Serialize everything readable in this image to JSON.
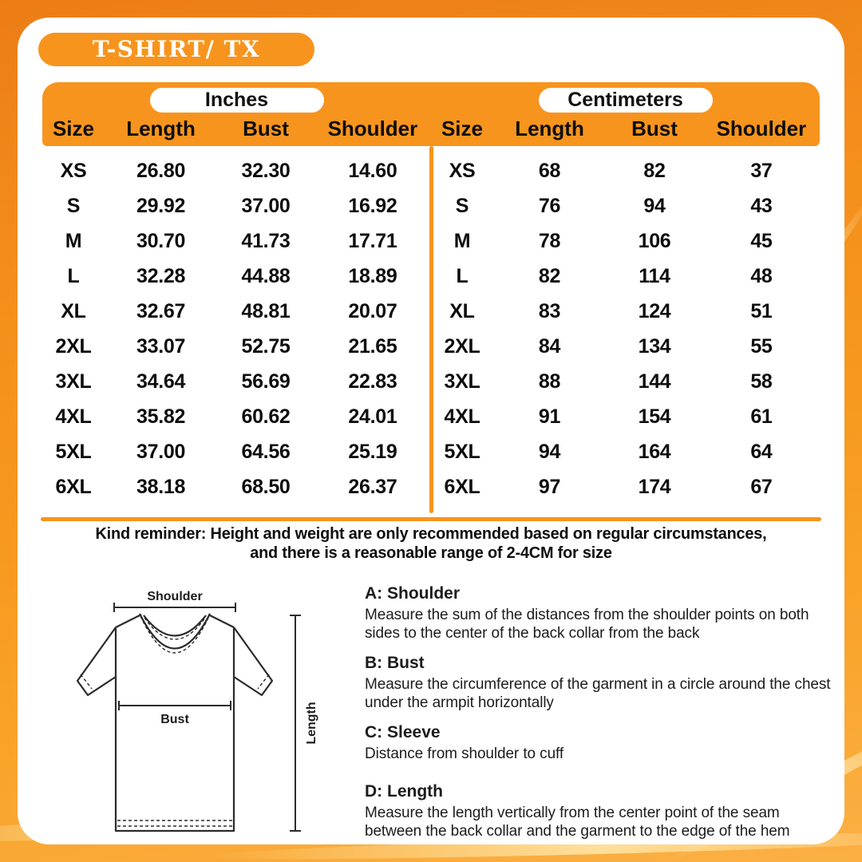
{
  "page": {
    "title": "T-SHIRT/ TX"
  },
  "colors": {
    "accent_orange": "#F7941D",
    "background_top": "#EC7D15",
    "background_bottom": "#FBB045",
    "card_white": "#FFFFFF",
    "text_black": "#0D0D0D"
  },
  "tables": [
    {
      "unit_label": "Inches",
      "columns": [
        "Size",
        "Length",
        "Bust",
        "Shoulder"
      ],
      "rows": [
        [
          "XS",
          "26.80",
          "32.30",
          "14.60"
        ],
        [
          "S",
          "29.92",
          "37.00",
          "16.92"
        ],
        [
          "M",
          "30.70",
          "41.73",
          "17.71"
        ],
        [
          "L",
          "32.28",
          "44.88",
          "18.89"
        ],
        [
          "XL",
          "32.67",
          "48.81",
          "20.07"
        ],
        [
          "2XL",
          "33.07",
          "52.75",
          "21.65"
        ],
        [
          "3XL",
          "34.64",
          "56.69",
          "22.83"
        ],
        [
          "4XL",
          "35.82",
          "60.62",
          "24.01"
        ],
        [
          "5XL",
          "37.00",
          "64.56",
          "25.19"
        ],
        [
          "6XL",
          "38.18",
          "68.50",
          "26.37"
        ]
      ]
    },
    {
      "unit_label": "Centimeters",
      "columns": [
        "Size",
        "Length",
        "Bust",
        "Shoulder"
      ],
      "rows": [
        [
          "XS",
          "68",
          "82",
          "37"
        ],
        [
          "S",
          "76",
          "94",
          "43"
        ],
        [
          "M",
          "78",
          "106",
          "45"
        ],
        [
          "L",
          "82",
          "114",
          "48"
        ],
        [
          "XL",
          "83",
          "124",
          "51"
        ],
        [
          "2XL",
          "84",
          "134",
          "55"
        ],
        [
          "3XL",
          "88",
          "144",
          "58"
        ],
        [
          "4XL",
          "91",
          "154",
          "61"
        ],
        [
          "5XL",
          "94",
          "164",
          "64"
        ],
        [
          "6XL",
          "97",
          "174",
          "67"
        ]
      ]
    }
  ],
  "reminder": {
    "line1": "Kind reminder: Height and weight are only recommended based on regular circumstances,",
    "line2": "and there is a reasonable range of 2-4CM for size"
  },
  "diagram": {
    "shoulder_label": "Shoulder",
    "bust_label": "Bust",
    "length_label": "Length"
  },
  "instructions": [
    {
      "heading": "A: Shoulder",
      "body": "Measure the sum of the distances from the shoulder points on both sides to the center of the back collar from the back"
    },
    {
      "heading": "B: Bust",
      "body": "Measure the circumference of the garment in a circle around the chest under the armpit horizontally"
    },
    {
      "heading": "C: Sleeve",
      "body": "Distance from shoulder to cuff"
    },
    {
      "heading": "D: Length",
      "body": "Measure the length vertically from the center point of the seam between the back collar and the garment to the edge of the hem"
    }
  ]
}
